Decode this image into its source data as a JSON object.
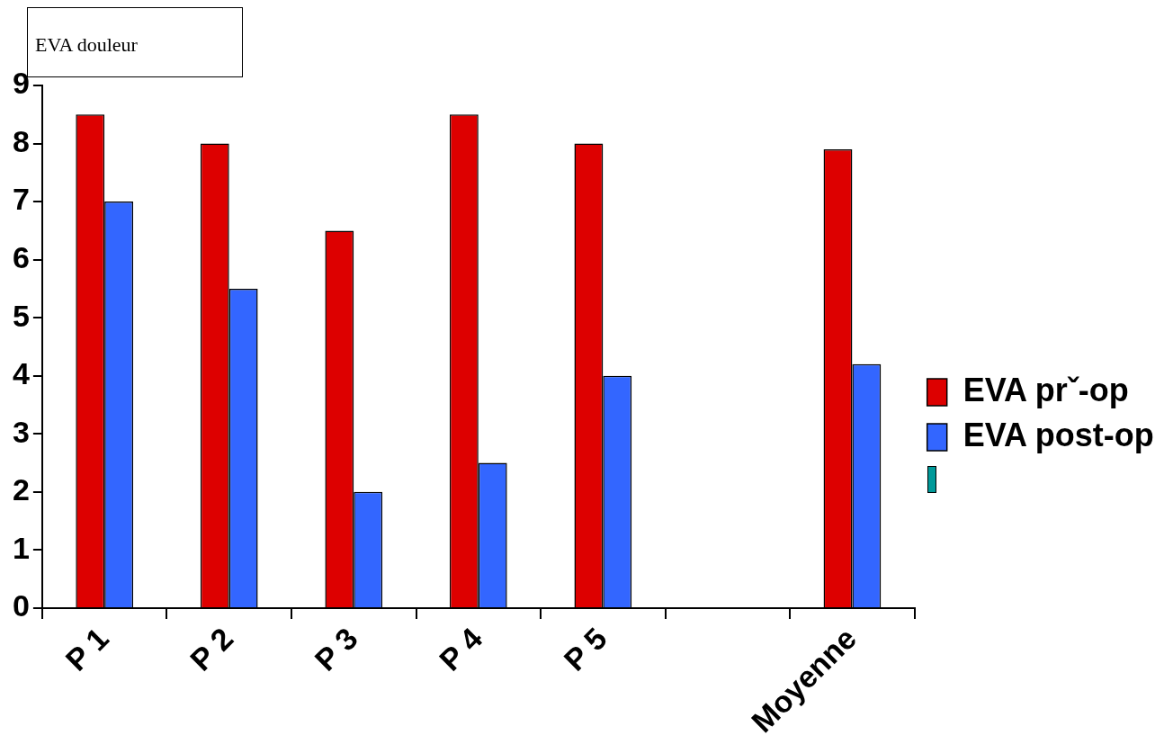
{
  "chart_data": {
    "type": "bar",
    "title": "EVA douleur",
    "categories": [
      "P 1",
      "P 2",
      "P 3",
      "P 4",
      "P 5",
      null,
      "Moyenne"
    ],
    "series": [
      {
        "name": "EVA prˇ-op",
        "color": "#dd0000",
        "values": [
          8.5,
          8,
          6.5,
          8.5,
          8,
          null,
          7.9
        ]
      },
      {
        "name": "EVA post-op",
        "color": "#3366ff",
        "values": [
          7,
          5.5,
          2,
          2.5,
          4,
          null,
          4.2
        ]
      }
    ],
    "ylim": [
      0,
      9
    ],
    "yticks": [
      0,
      1,
      2,
      3,
      4,
      5,
      6,
      7,
      8,
      9
    ],
    "grid": false,
    "legend": "right"
  }
}
